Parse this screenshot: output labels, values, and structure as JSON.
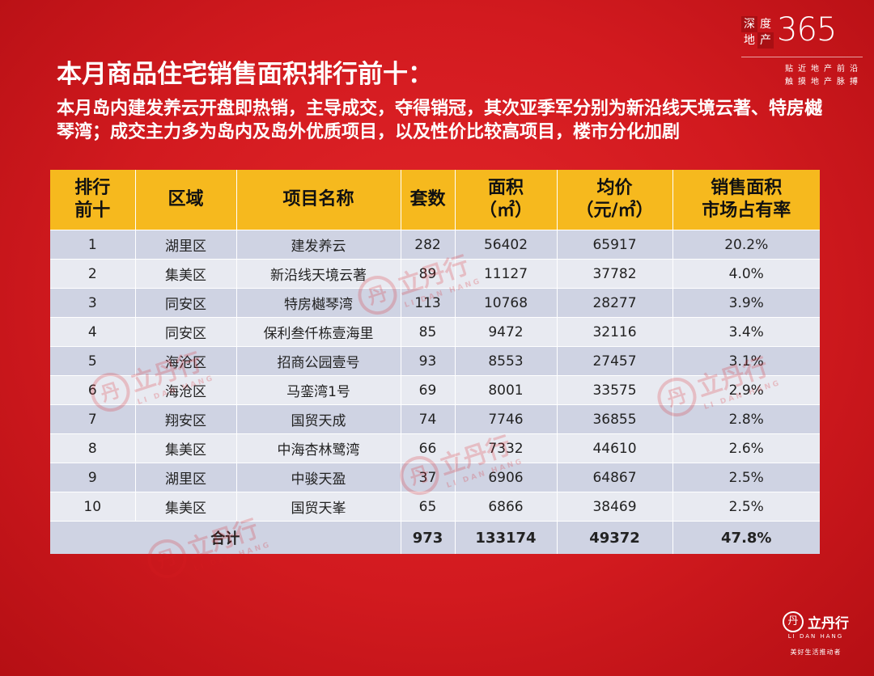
{
  "logo": {
    "cn_chars": [
      "深",
      "度",
      "地",
      "产"
    ],
    "number": "365",
    "tagline1": "贴近地产前沿",
    "tagline2": "触摸地产脉搏"
  },
  "title": "本月商品住宅销售面积排行前十：",
  "description": "本月岛内建发养云开盘即热销，主导成交，夺得销冠，其次亚季军分别为新沿线天境云著、特房樾琴湾；成交主力多为岛内及岛外优质项目，以及性价比较高项目，楼市分化加剧",
  "table": {
    "headers": [
      "排行\n前十",
      "区域",
      "项目名称",
      "套数",
      "面积\n（㎡）",
      "均价\n（元/㎡）",
      "销售面积\n市场占有率"
    ],
    "rows": [
      {
        "rank": "1",
        "area": "湖里区",
        "project": "建发养云",
        "units": "282",
        "size": "56402",
        "price": "65917",
        "share": "20.2%"
      },
      {
        "rank": "2",
        "area": "集美区",
        "project": "新沿线天境云著",
        "units": "89",
        "size": "11127",
        "price": "37782",
        "share": "4.0%"
      },
      {
        "rank": "3",
        "area": "同安区",
        "project": "特房樾琴湾",
        "units": "113",
        "size": "10768",
        "price": "28277",
        "share": "3.9%"
      },
      {
        "rank": "4",
        "area": "同安区",
        "project": "保利叁仟栋壹海里",
        "units": "85",
        "size": "9472",
        "price": "32116",
        "share": "3.4%"
      },
      {
        "rank": "5",
        "area": "海沧区",
        "project": "招商公园壹号",
        "units": "93",
        "size": "8553",
        "price": "27457",
        "share": "3.1%"
      },
      {
        "rank": "6",
        "area": "海沧区",
        "project": "马銮湾1号",
        "units": "69",
        "size": "8001",
        "price": "33575",
        "share": "2.9%"
      },
      {
        "rank": "7",
        "area": "翔安区",
        "project": "国贸天成",
        "units": "74",
        "size": "7746",
        "price": "36855",
        "share": "2.8%"
      },
      {
        "rank": "8",
        "area": "集美区",
        "project": "中海杏林鹭湾",
        "units": "66",
        "size": "7332",
        "price": "44610",
        "share": "2.6%"
      },
      {
        "rank": "9",
        "area": "湖里区",
        "project": "中骏天盈",
        "units": "37",
        "size": "6906",
        "price": "64867",
        "share": "2.5%"
      },
      {
        "rank": "10",
        "area": "集美区",
        "project": "国贸天峯",
        "units": "65",
        "size": "6866",
        "price": "38469",
        "share": "2.5%"
      }
    ],
    "total": {
      "label": "合计",
      "units": "973",
      "size": "133174",
      "price": "49372",
      "share": "47.8%"
    }
  },
  "watermark": {
    "cn": "立丹行",
    "en": "LI DAN HANG",
    "mark": "丹"
  },
  "footer_logo": {
    "mark": "丹",
    "name": "立丹行",
    "en": "LI DAN HANG",
    "slogan": "美好生活推动者"
  },
  "colors": {
    "background": "#d21a1f",
    "header": "#f6b91e",
    "row_dark": "#cfd3e3",
    "row_light": "#e8eaf1"
  }
}
